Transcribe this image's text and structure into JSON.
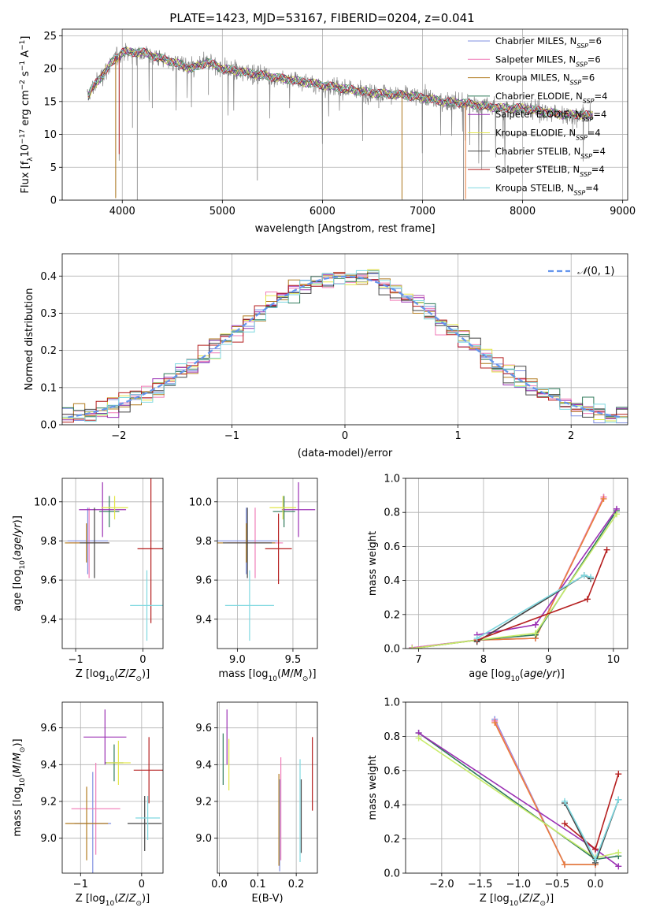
{
  "figure_title": "PLATE=1423, MJD=53167, FIBERID=0204, z=0.041",
  "colors": {
    "Chabrier MILES": "#7f8fe0",
    "Salpeter MILES": "#f07cb8",
    "Kroupa MILES": "#b07a1e",
    "Chabrier ELODIE": "#2f7a5a",
    "Salpeter ELODIE": "#9b30b4",
    "Kroupa ELODIE": "#e3e64a",
    "Chabrier STELIB": "#444444",
    "Salpeter STELIB": "#b51e1e",
    "Kroupa STELIB": "#7fd8e0",
    "data": "#808080",
    "gauss": "#6495ed",
    "orange_line": "#e87d3a",
    "lime_line": "#c8ec6a"
  },
  "chart_data": [
    {
      "id": "spectrum",
      "type": "line",
      "title": "PLATE=1423, MJD=53167, FIBERID=0204, z=0.041",
      "xlabel": "wavelength [Angstrom, rest frame]",
      "ylabel": "Flux [f_λ 10^-17 erg cm^-2 s^-1 A^-1]",
      "xlim": [
        3400,
        9050
      ],
      "ylim": [
        0,
        26
      ],
      "xticks": [
        4000,
        5000,
        6000,
        7000,
        8000,
        9000
      ],
      "yticks": [
        0,
        5,
        10,
        15,
        20,
        25
      ],
      "legend": [
        {
          "base": "Chabrier MILES, N",
          "sub": "SSP",
          "tail": "=6"
        },
        {
          "base": "Salpeter MILES, N",
          "sub": "SSP",
          "tail": "=6"
        },
        {
          "base": "Kroupa MILES, N",
          "sub": "SSP",
          "tail": "=6"
        },
        {
          "base": "Chabrier ELODIE, N",
          "sub": "SSP",
          "tail": "=4"
        },
        {
          "base": "Salpeter ELODIE, N",
          "sub": "SSP",
          "tail": "=4"
        },
        {
          "base": "Kroupa ELODIE, N",
          "sub": "SSP",
          "tail": "=4"
        },
        {
          "base": "Chabrier STELIB, N",
          "sub": "SSP",
          "tail": "=4"
        },
        {
          "base": "Salpeter STELIB, N",
          "sub": "SSP",
          "tail": "=4"
        },
        {
          "base": "Kroupa STELIB, N",
          "sub": "SSP",
          "tail": "=4"
        }
      ],
      "continuum": {
        "x": [
          3650,
          3700,
          3800,
          3900,
          4000,
          4100,
          4200,
          4300,
          4500,
          4700,
          4850,
          5000,
          5200,
          5400,
          5600,
          5800,
          6000,
          6200,
          6400,
          6600,
          6800,
          7000,
          7200,
          7400,
          7600,
          7800,
          8000,
          8200,
          8400,
          8600,
          8700
        ],
        "y": [
          15.5,
          17,
          19,
          21,
          22.5,
          22.5,
          22.5,
          22,
          21,
          20,
          21,
          20,
          19.5,
          19,
          18.5,
          18,
          17.5,
          17,
          16.5,
          16.2,
          16,
          15.6,
          15,
          14.8,
          14.3,
          14,
          14,
          13.5,
          13,
          13,
          12.8
        ]
      },
      "data_dips": [
        {
          "x": 3934,
          "y": 0.5
        },
        {
          "x": 3969,
          "y": 6
        },
        {
          "x": 4102,
          "y": 11
        },
        {
          "x": 4150,
          "y": 0
        },
        {
          "x": 4300,
          "y": 14
        },
        {
          "x": 4861,
          "y": 16
        },
        {
          "x": 5350,
          "y": 3
        },
        {
          "x": 6563,
          "y": 14
        },
        {
          "x": 6795,
          "y": 0
        },
        {
          "x": 7410,
          "y": 0
        },
        {
          "x": 8500,
          "y": 10
        },
        {
          "x": 8542,
          "y": 11
        },
        {
          "x": 8662,
          "y": 10
        }
      ]
    },
    {
      "id": "residuals",
      "type": "line",
      "xlabel": "(data-model)/error",
      "ylabel": "Normed distribution",
      "xlim": [
        -2.5,
        2.5
      ],
      "ylim": [
        0,
        0.46
      ],
      "xticks": [
        -2,
        -1,
        0,
        1,
        2
      ],
      "yticks": [
        0.0,
        0.1,
        0.2,
        0.3,
        0.4
      ],
      "legend_label": "N(0,1)",
      "gauss": {
        "mu": 0,
        "sigma": 1
      }
    },
    {
      "id": "age-vs-Z",
      "type": "scatter",
      "xlabel": "Z [log10(Z/Z⊙)]",
      "ylabel": "age  [log10(age/yr)]",
      "xlim": [
        -1.2,
        0.3
      ],
      "ylim": [
        9.25,
        10.12
      ],
      "xticks": [
        -1,
        0
      ],
      "yticks": [
        9.4,
        9.6,
        9.8,
        10.0
      ],
      "points": [
        {
          "model": "Chabrier MILES",
          "x": -0.82,
          "xerr": 0.3,
          "y": 9.8,
          "yerr": 0.17
        },
        {
          "model": "Salpeter MILES",
          "x": -0.8,
          "xerr": 0.3,
          "y": 9.79,
          "yerr": 0.18
        },
        {
          "model": "Kroupa MILES",
          "x": -0.84,
          "xerr": 0.32,
          "y": 9.79,
          "yerr": 0.1
        },
        {
          "model": "Chabrier ELODIE",
          "x": -0.5,
          "xerr": 0.15,
          "y": 9.95,
          "yerr": 0.08
        },
        {
          "model": "Salpeter ELODIE",
          "x": -0.6,
          "xerr": 0.35,
          "y": 9.96,
          "yerr": 0.14
        },
        {
          "model": "Kroupa ELODIE",
          "x": -0.42,
          "xerr": 0.2,
          "y": 9.97,
          "yerr": 0.06
        },
        {
          "model": "Chabrier STELIB",
          "x": -0.72,
          "xerr": 0.22,
          "y": 9.79,
          "yerr": 0.18
        },
        {
          "model": "Salpeter STELIB",
          "x": 0.12,
          "xerr": 0.2,
          "y": 9.76,
          "yerr": 0.38
        },
        {
          "model": "Kroupa STELIB",
          "x": 0.06,
          "xerr": 0.25,
          "y": 9.47,
          "yerr": 0.18
        }
      ]
    },
    {
      "id": "age-vs-mass",
      "type": "scatter",
      "xlabel": "mass [log10(M/M⊙)]",
      "ylabel": "",
      "xlim": [
        8.82,
        9.72
      ],
      "ylim": [
        9.25,
        10.12
      ],
      "xticks": [
        9.0,
        9.5
      ],
      "yticks": [
        9.4,
        9.6,
        9.8,
        10.0
      ],
      "points": [
        {
          "model": "Chabrier MILES",
          "x": 9.08,
          "xerr": 0.28,
          "y": 9.8,
          "yerr": 0.17
        },
        {
          "model": "Salpeter MILES",
          "x": 9.16,
          "xerr": 0.25,
          "y": 9.79,
          "yerr": 0.18
        },
        {
          "model": "Kroupa MILES",
          "x": 9.08,
          "xerr": 0.26,
          "y": 9.79,
          "yerr": 0.1
        },
        {
          "model": "Chabrier ELODIE",
          "x": 9.42,
          "xerr": 0.1,
          "y": 9.95,
          "yerr": 0.08
        },
        {
          "model": "Salpeter ELODIE",
          "x": 9.55,
          "xerr": 0.15,
          "y": 9.96,
          "yerr": 0.14
        },
        {
          "model": "Kroupa ELODIE",
          "x": 9.41,
          "xerr": 0.12,
          "y": 9.97,
          "yerr": 0.06
        },
        {
          "model": "Chabrier STELIB",
          "x": 9.09,
          "xerr": 0.22,
          "y": 9.79,
          "yerr": 0.18
        },
        {
          "model": "Salpeter STELIB",
          "x": 9.37,
          "xerr": 0.12,
          "y": 9.76,
          "yerr": 0.18
        },
        {
          "model": "Kroupa STELIB",
          "x": 9.11,
          "xerr": 0.22,
          "y": 9.47,
          "yerr": 0.18
        }
      ]
    },
    {
      "id": "massweight-vs-age",
      "type": "line",
      "xlabel": "age  [log10(age/yr)]",
      "ylabel": "mass weight",
      "xlim": [
        6.8,
        10.22
      ],
      "ylim": [
        0,
        1.0
      ],
      "xticks": [
        7,
        8,
        9,
        10
      ],
      "yticks": [
        0.0,
        0.2,
        0.4,
        0.6,
        0.8,
        1.0
      ],
      "series": [
        {
          "model": "Chabrier MILES",
          "x": [
            6.9,
            7.9,
            8.8,
            9.85
          ],
          "y": [
            0.005,
            0.05,
            0.06,
            0.89
          ]
        },
        {
          "model": "Salpeter MILES",
          "x": [
            6.9,
            7.9,
            8.8,
            9.85
          ],
          "y": [
            0.005,
            0.05,
            0.06,
            0.89
          ]
        },
        {
          "model": "Kroupa MILES",
          "x": [
            6.9,
            7.9,
            8.8,
            9.85
          ],
          "y": [
            0.0,
            0.05,
            0.06,
            0.88
          ]
        },
        {
          "model": "Chabrier ELODIE",
          "x": [
            6.9,
            7.9,
            8.8,
            10.05
          ],
          "y": [
            0.0,
            0.05,
            0.08,
            0.81
          ]
        },
        {
          "model": "Salpeter ELODIE",
          "x": [
            7.9,
            8.8,
            10.05
          ],
          "y": [
            0.08,
            0.14,
            0.82
          ]
        },
        {
          "model": "Kroupa ELODIE",
          "x": [
            6.9,
            7.9,
            8.8,
            10.05
          ],
          "y": [
            0.0,
            0.05,
            0.09,
            0.79
          ]
        },
        {
          "model": "Chabrier STELIB",
          "x": [
            7.9,
            9.55,
            9.65
          ],
          "y": [
            0.04,
            0.43,
            0.41
          ]
        },
        {
          "model": "Salpeter STELIB",
          "x": [
            7.9,
            9.6,
            9.9
          ],
          "y": [
            0.05,
            0.29,
            0.58
          ]
        },
        {
          "model": "Kroupa STELIB",
          "x": [
            7.9,
            9.55,
            9.65
          ],
          "y": [
            0.06,
            0.43,
            0.42
          ]
        }
      ]
    },
    {
      "id": "mass-vs-Z",
      "type": "scatter",
      "xlabel": "Z [log10(Z/Z⊙)]",
      "ylabel": "mass [log10(M/M⊙)]",
      "xlim": [
        -1.3,
        0.35
      ],
      "ylim": [
        8.81,
        9.74
      ],
      "xticks": [
        -1,
        0
      ],
      "yticks": [
        9.0,
        9.2,
        9.4,
        9.6
      ],
      "points": [
        {
          "model": "Chabrier MILES",
          "x": -0.8,
          "xerr": 0.3,
          "y": 9.08,
          "yerr": 0.28
        },
        {
          "model": "Salpeter MILES",
          "x": -0.75,
          "xerr": 0.4,
          "y": 9.16,
          "yerr": 0.25
        },
        {
          "model": "Kroupa MILES",
          "x": -0.9,
          "xerr": 0.35,
          "y": 9.08,
          "yerr": 0.2
        },
        {
          "model": "Chabrier ELODIE",
          "x": -0.45,
          "xerr": 0.15,
          "y": 9.41,
          "yerr": 0.1
        },
        {
          "model": "Salpeter ELODIE",
          "x": -0.6,
          "xerr": 0.35,
          "y": 9.55,
          "yerr": 0.15
        },
        {
          "model": "Kroupa ELODIE",
          "x": -0.38,
          "xerr": 0.2,
          "y": 9.41,
          "yerr": 0.12
        },
        {
          "model": "Chabrier STELIB",
          "x": 0.05,
          "xerr": 0.28,
          "y": 9.08,
          "yerr": 0.15
        },
        {
          "model": "Salpeter STELIB",
          "x": 0.12,
          "xerr": 0.25,
          "y": 9.37,
          "yerr": 0.18
        },
        {
          "model": "Kroupa STELIB",
          "x": 0.1,
          "xerr": 0.2,
          "y": 9.11,
          "yerr": 0.12
        }
      ]
    },
    {
      "id": "mass-vs-ebv",
      "type": "scatter",
      "xlabel": "E(B-V)",
      "ylabel": "",
      "xlim": [
        -0.005,
        0.255
      ],
      "ylim": [
        8.81,
        9.74
      ],
      "xticks": [
        0.0,
        0.1,
        0.2
      ],
      "yticks": [
        9.0,
        9.2,
        9.4,
        9.6
      ],
      "points": [
        {
          "model": "Chabrier MILES",
          "x": 0.157,
          "y": 9.07,
          "yerr": 0.25
        },
        {
          "model": "Salpeter MILES",
          "x": 0.16,
          "y": 9.16,
          "yerr": 0.28
        },
        {
          "model": "Kroupa MILES",
          "x": 0.155,
          "y": 9.1,
          "yerr": 0.25
        },
        {
          "model": "Chabrier ELODIE",
          "x": 0.01,
          "y": 9.43,
          "yerr": 0.14
        },
        {
          "model": "Salpeter ELODIE",
          "x": 0.02,
          "y": 9.55,
          "yerr": 0.15
        },
        {
          "model": "Kroupa ELODIE",
          "x": 0.025,
          "y": 9.4,
          "yerr": 0.14
        },
        {
          "model": "Chabrier STELIB",
          "x": 0.213,
          "y": 9.12,
          "yerr": 0.2
        },
        {
          "model": "Salpeter STELIB",
          "x": 0.242,
          "y": 9.35,
          "yerr": 0.2
        },
        {
          "model": "Kroupa STELIB",
          "x": 0.21,
          "y": 9.15,
          "yerr": 0.28
        }
      ]
    },
    {
      "id": "massweight-vs-Z",
      "type": "line",
      "xlabel": "Z [log10(Z/Z⊙)]",
      "ylabel": "mass weight",
      "xlim": [
        -2.47,
        0.42
      ],
      "ylim": [
        0,
        1.0
      ],
      "xticks": [
        -2.0,
        -1.5,
        -1.0,
        -0.5,
        0.0
      ],
      "yticks": [
        0.0,
        0.2,
        0.4,
        0.6,
        0.8,
        1.0
      ],
      "series": [
        {
          "model": "Chabrier MILES",
          "x": [
            -1.31,
            -0.4,
            0.0
          ],
          "y": [
            0.9,
            0.05,
            0.05
          ]
        },
        {
          "model": "Salpeter MILES",
          "x": [
            -1.31,
            -0.4,
            0.0
          ],
          "y": [
            0.89,
            0.05,
            0.05
          ]
        },
        {
          "model": "Kroupa MILES",
          "x": [
            -1.31,
            -0.4,
            0.0
          ],
          "y": [
            0.88,
            0.05,
            0.05
          ]
        },
        {
          "model": "Chabrier ELODIE",
          "x": [
            -2.3,
            0.0,
            0.3
          ],
          "y": [
            0.82,
            0.08,
            0.1
          ]
        },
        {
          "model": "Salpeter ELODIE",
          "x": [
            -2.3,
            0.0,
            0.3
          ],
          "y": [
            0.82,
            0.14,
            0.04
          ]
        },
        {
          "model": "Kroupa ELODIE",
          "x": [
            -2.3,
            0.0,
            0.3
          ],
          "y": [
            0.79,
            0.09,
            0.12
          ]
        },
        {
          "model": "Chabrier STELIB",
          "x": [
            -0.4,
            0.0,
            0.3
          ],
          "y": [
            0.41,
            0.06,
            0.43
          ]
        },
        {
          "model": "Salpeter STELIB",
          "x": [
            -0.4,
            0.0,
            0.3
          ],
          "y": [
            0.29,
            0.14,
            0.58
          ]
        },
        {
          "model": "Kroupa STELIB",
          "x": [
            -0.4,
            0.0,
            0.3
          ],
          "y": [
            0.42,
            0.08,
            0.43
          ]
        }
      ]
    }
  ]
}
